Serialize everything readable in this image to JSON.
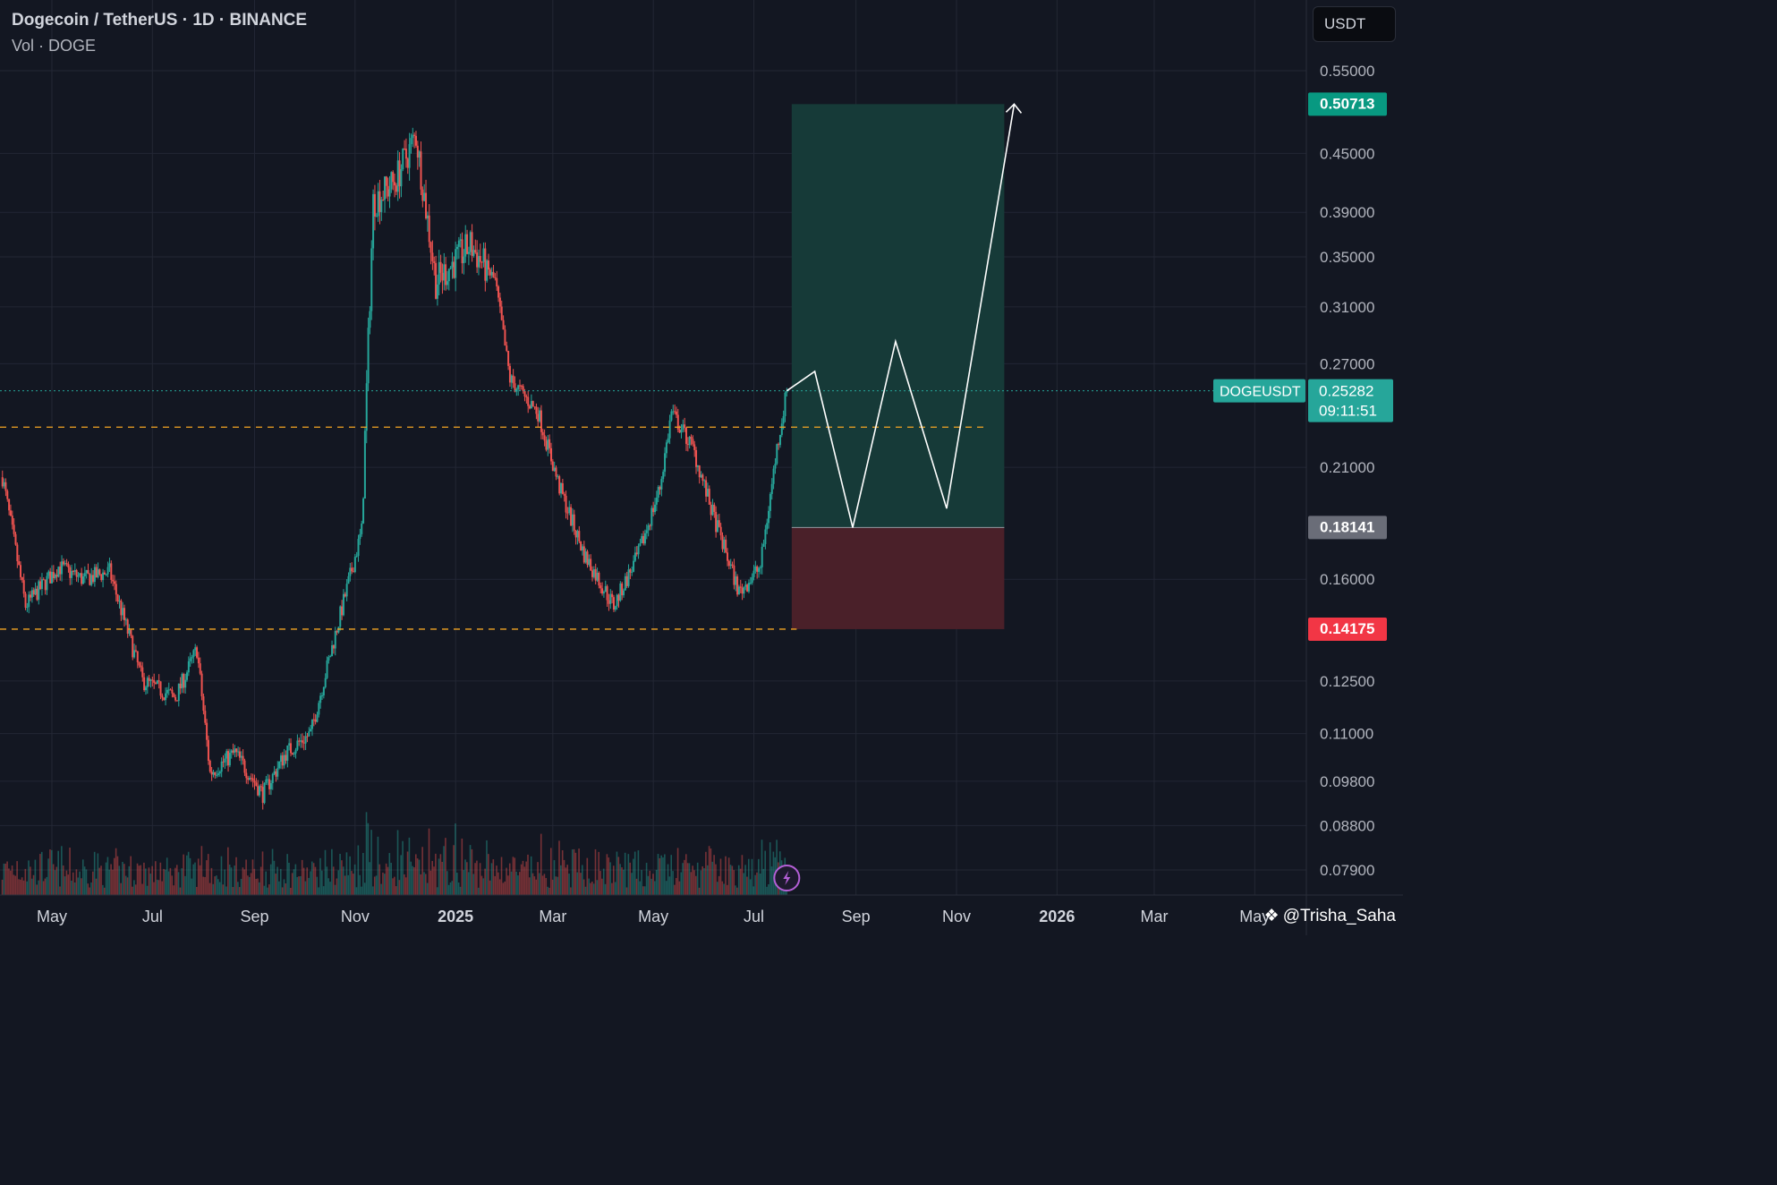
{
  "header": {
    "title": "Dogecoin / TetherUS · 1D · BINANCE",
    "volume_label": "Vol · DOGE"
  },
  "currency_button": "USDT",
  "watermark": "@Trisha_Saha",
  "colors": {
    "background": "#131722",
    "up": "#26a69a",
    "down": "#ef5350",
    "dashed": "#f5a623",
    "target_zone": "#163a38",
    "stop_zone": "#4a2029",
    "projection": "#ffffff"
  },
  "chart_data": {
    "type": "candlestick",
    "symbol": "DOGEUSDT",
    "interval": "1D",
    "exchange": "BINANCE",
    "y_scale": "log",
    "ylim": [
      0.075,
      0.6
    ],
    "y_ticks": [
      "0.55000",
      "0.45000",
      "0.39000",
      "0.35000",
      "0.31000",
      "0.27000",
      "0.21000",
      "0.16000",
      "0.12500",
      "0.11000",
      "0.09800",
      "0.08800",
      "0.07900"
    ],
    "x_ticks": [
      "May",
      "Jul",
      "Sep",
      "Nov",
      "2025",
      "Mar",
      "May",
      "Jul",
      "Sep",
      "Nov",
      "2026",
      "Mar",
      "May"
    ],
    "x_tick_dates": [
      "2024-05-01",
      "2024-07-01",
      "2024-09-01",
      "2024-11-01",
      "2025-01-01",
      "2025-03-01",
      "2025-05-01",
      "2025-07-01",
      "2025-09-01",
      "2025-11-01",
      "2026-01-01",
      "2026-03-01",
      "2026-05-01"
    ],
    "price_path": [
      [
        "2024-04-01",
        0.205
      ],
      [
        "2024-04-15",
        0.15
      ],
      [
        "2024-05-05",
        0.165
      ],
      [
        "2024-05-20",
        0.16
      ],
      [
        "2024-06-05",
        0.163
      ],
      [
        "2024-06-25",
        0.125
      ],
      [
        "2024-07-15",
        0.12
      ],
      [
        "2024-07-28",
        0.135
      ],
      [
        "2024-08-05",
        0.1
      ],
      [
        "2024-08-20",
        0.105
      ],
      [
        "2024-09-06",
        0.095
      ],
      [
        "2024-09-20",
        0.105
      ],
      [
        "2024-10-05",
        0.11
      ],
      [
        "2024-10-20",
        0.14
      ],
      [
        "2024-11-05",
        0.18
      ],
      [
        "2024-11-12",
        0.4
      ],
      [
        "2024-11-25",
        0.42
      ],
      [
        "2024-12-08",
        0.47
      ],
      [
        "2024-12-20",
        0.33
      ],
      [
        "2025-01-10",
        0.36
      ],
      [
        "2025-01-25",
        0.33
      ],
      [
        "2025-02-03",
        0.26
      ],
      [
        "2025-02-20",
        0.24
      ],
      [
        "2025-03-05",
        0.2
      ],
      [
        "2025-03-20",
        0.17
      ],
      [
        "2025-04-07",
        0.15
      ],
      [
        "2025-04-22",
        0.17
      ],
      [
        "2025-05-05",
        0.2
      ],
      [
        "2025-05-12",
        0.24
      ],
      [
        "2025-05-25",
        0.22
      ],
      [
        "2025-06-05",
        0.19
      ],
      [
        "2025-06-22",
        0.155
      ],
      [
        "2025-07-05",
        0.165
      ],
      [
        "2025-07-15",
        0.22
      ],
      [
        "2025-07-21",
        0.25282
      ]
    ],
    "volume_label": "Vol · DOGE",
    "levels": [
      {
        "type": "dashed",
        "price": 0.2315
      },
      {
        "type": "dashed",
        "price": 0.14175
      }
    ],
    "last_price": {
      "label": "DOGEUSDT",
      "value": "0.25282",
      "countdown": "09:11:51"
    },
    "position": {
      "entry": "0.18141",
      "target": "0.50713",
      "stop": "0.14175"
    },
    "projection_path": [
      [
        "2025-07-21",
        0.25282
      ],
      [
        "2025-08-07",
        0.265
      ],
      [
        "2025-08-30",
        0.18141
      ],
      [
        "2025-09-25",
        0.285
      ],
      [
        "2025-10-26",
        0.19
      ],
      [
        "2025-12-06",
        0.50713
      ]
    ]
  }
}
